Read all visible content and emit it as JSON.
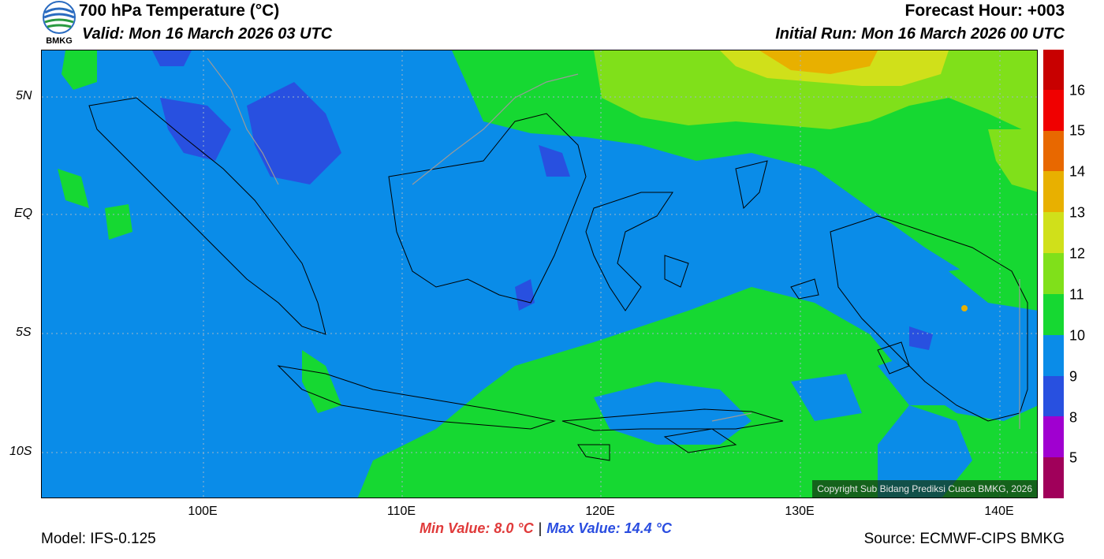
{
  "header": {
    "title": "700 hPa Temperature (°C)",
    "valid": "Valid: Mon 16 March 2026 03 UTC",
    "forecast_hour": "Forecast Hour: +003",
    "initial_run": "Initial Run: Mon 16 March 2026 00 UTC",
    "logo_text": "BMKG"
  },
  "map": {
    "lat_labels": [
      "5N",
      "EQ",
      "5S",
      "10S"
    ],
    "lon_labels": [
      "100E",
      "110E",
      "120E",
      "130E",
      "140E"
    ],
    "copyright": "Copyright Sub Bidang Prediksi Cuaca BMKG, 2026"
  },
  "colorbar": {
    "labels": [
      "5",
      "8",
      "9",
      "10",
      "11",
      "12",
      "13",
      "14",
      "15",
      "16"
    ],
    "colors": [
      "#a0005a",
      "#a000d0",
      "#2850e0",
      "#0a8ce8",
      "#16d832",
      "#80e01a",
      "#d0e01a",
      "#e8b000",
      "#e86800",
      "#f00000",
      "#c80000"
    ]
  },
  "footer": {
    "model": "Model: IFS-0.125",
    "min": "Min Value: 8.0 °C",
    "separator": "|",
    "max": "Max Value: 14.4 °C",
    "source": "Source: ECMWF-CIPS BMKG"
  }
}
